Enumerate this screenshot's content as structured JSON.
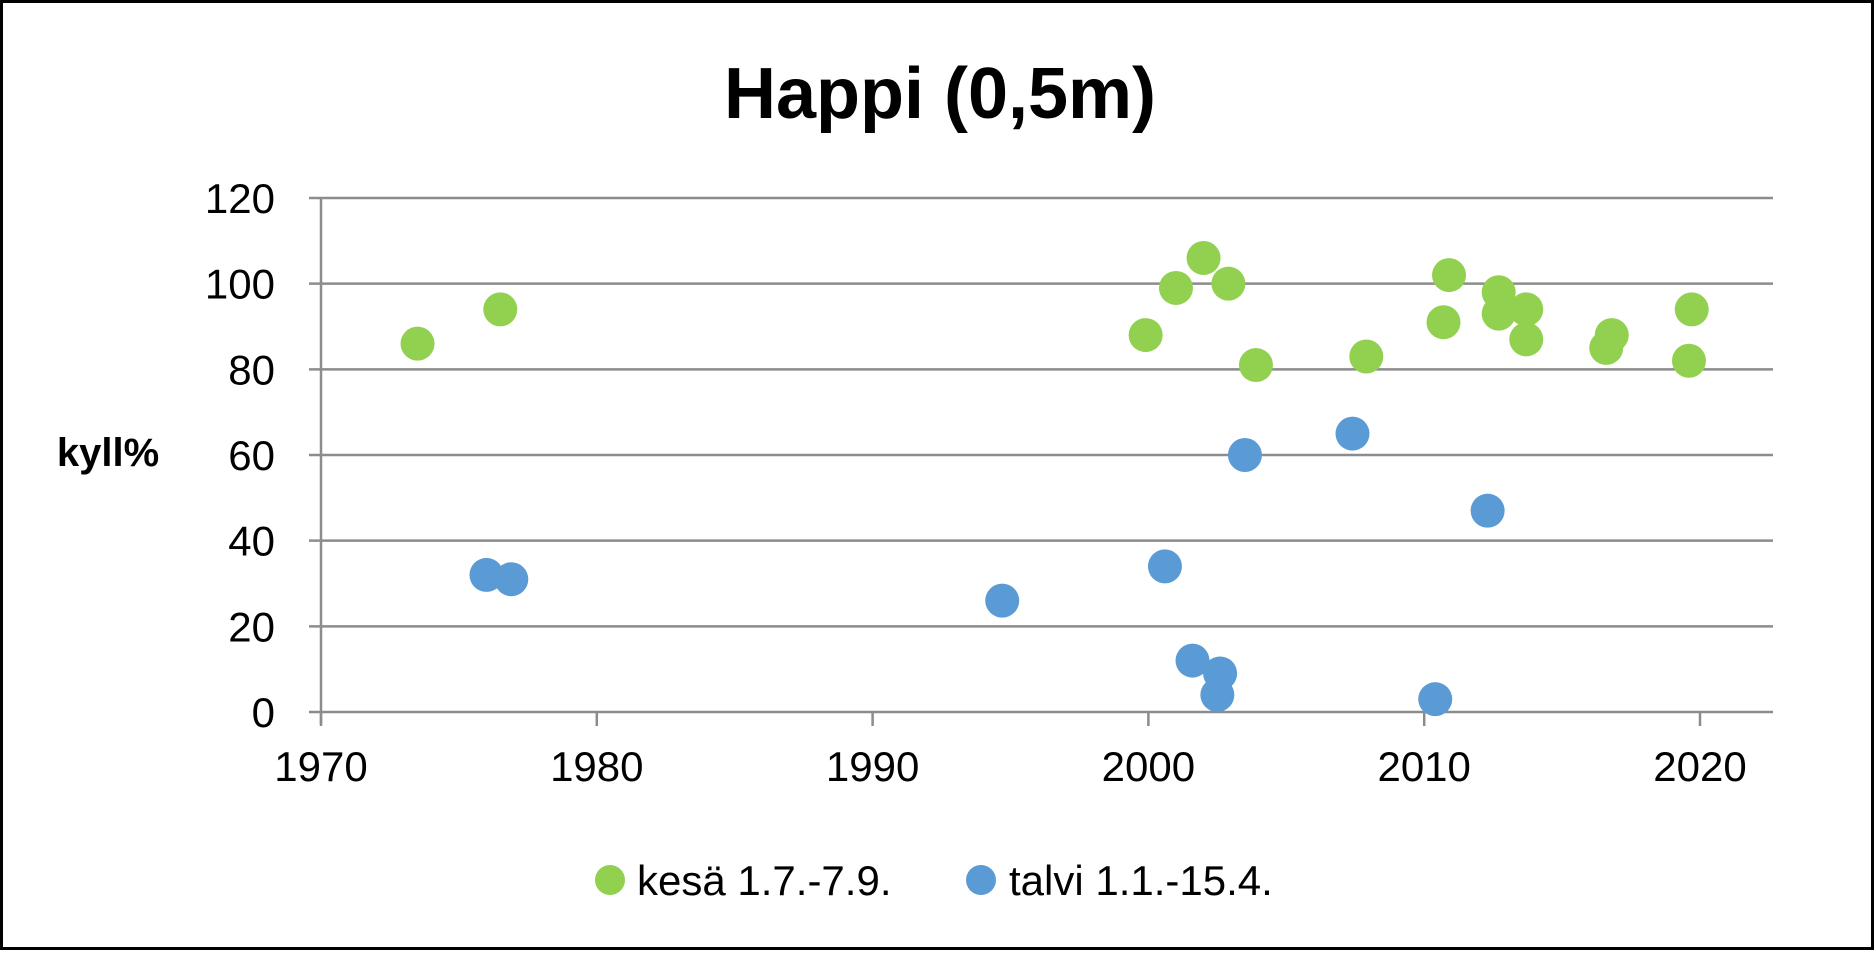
{
  "chart_data": {
    "type": "scatter",
    "title": "Happi (0,5m)",
    "xlabel": "",
    "ylabel": "kyll%",
    "xlim": [
      1970,
      2022.5
    ],
    "ylim": [
      0,
      120
    ],
    "x_ticks": [
      1970,
      1980,
      1990,
      2000,
      2010,
      2020
    ],
    "y_ticks": [
      0,
      20,
      40,
      60,
      80,
      100,
      120
    ],
    "grid": "horizontal",
    "legend_position": "bottom",
    "series": [
      {
        "name": "kesä 1.7.-7.9.",
        "color": "#92d050",
        "points": [
          {
            "x": 1973.5,
            "y": 86
          },
          {
            "x": 1976.5,
            "y": 94
          },
          {
            "x": 1999.9,
            "y": 88
          },
          {
            "x": 2001.0,
            "y": 99
          },
          {
            "x": 2002.0,
            "y": 106
          },
          {
            "x": 2002.9,
            "y": 100
          },
          {
            "x": 2003.9,
            "y": 81
          },
          {
            "x": 2007.9,
            "y": 83
          },
          {
            "x": 2010.7,
            "y": 91
          },
          {
            "x": 2010.9,
            "y": 102
          },
          {
            "x": 2012.7,
            "y": 98
          },
          {
            "x": 2012.7,
            "y": 93
          },
          {
            "x": 2013.7,
            "y": 94
          },
          {
            "x": 2013.7,
            "y": 87
          },
          {
            "x": 2016.6,
            "y": 85
          },
          {
            "x": 2016.8,
            "y": 88
          },
          {
            "x": 2019.6,
            "y": 82
          },
          {
            "x": 2019.7,
            "y": 94
          }
        ]
      },
      {
        "name": "talvi 1.1.-15.4.",
        "color": "#5b9bd5",
        "points": [
          {
            "x": 1976.0,
            "y": 32
          },
          {
            "x": 1976.9,
            "y": 31
          },
          {
            "x": 1994.7,
            "y": 26
          },
          {
            "x": 2000.6,
            "y": 34
          },
          {
            "x": 2001.6,
            "y": 12
          },
          {
            "x": 2002.6,
            "y": 9
          },
          {
            "x": 2002.5,
            "y": 4
          },
          {
            "x": 2003.5,
            "y": 60
          },
          {
            "x": 2007.4,
            "y": 65
          },
          {
            "x": 2010.4,
            "y": 3
          },
          {
            "x": 2012.3,
            "y": 47
          }
        ]
      }
    ]
  }
}
